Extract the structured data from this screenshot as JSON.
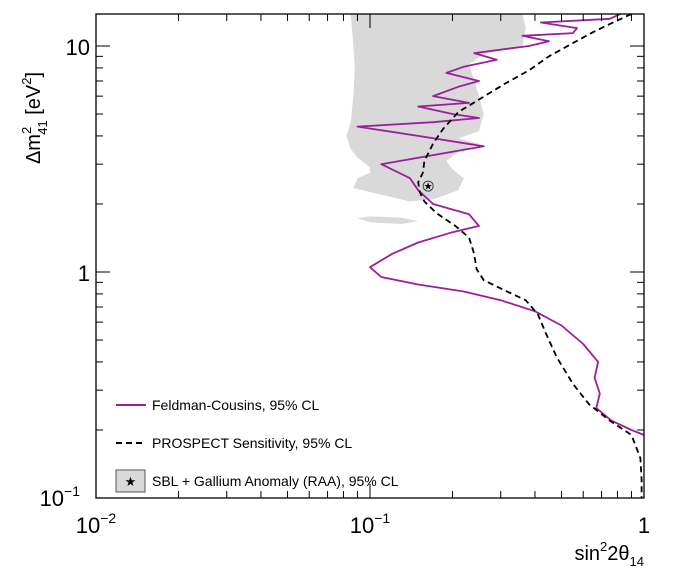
{
  "chart_data": {
    "type": "line",
    "xscale": "log",
    "yscale": "log",
    "xlim": [
      0.01,
      1
    ],
    "ylim": [
      0.1,
      14
    ],
    "xlabel": {
      "base": "sin",
      "sup": "2",
      "mid": "2θ",
      "sub": "14"
    },
    "ylabel": {
      "pre": "Δm",
      "sup": "2",
      "sub": "41",
      "post": " [eV",
      "unit_sup": "2",
      "close": "]"
    },
    "x_ticks": [
      {
        "value": 0.01,
        "base": "10",
        "exp": "−2"
      },
      {
        "value": 0.1,
        "base": "10",
        "exp": "−1"
      },
      {
        "value": 1,
        "base": "1",
        "exp": ""
      }
    ],
    "y_ticks": [
      {
        "value": 0.1,
        "base": "10",
        "exp": "−1"
      },
      {
        "value": 1,
        "base": "1",
        "exp": ""
      },
      {
        "value": 10,
        "base": "10",
        "exp": ""
      }
    ],
    "grid": false,
    "legend_position": "bottom-left",
    "legend": {
      "feldman": "Feldman-Cousins, 95% CL",
      "sensitivity": "PROSPECT Sensitivity, 95% CL",
      "anomaly": "SBL + Gallium Anomaly (RAA), 95% CL"
    },
    "series": [
      {
        "id": "feldman",
        "color": "#9b1f9b",
        "style": "solid",
        "points": [
          [
            0.82,
            14.0
          ],
          [
            0.75,
            13.2
          ],
          [
            0.42,
            12.7
          ],
          [
            0.57,
            12.0
          ],
          [
            0.55,
            11.4
          ],
          [
            0.36,
            11.1
          ],
          [
            0.45,
            10.5
          ],
          [
            0.38,
            10.0
          ],
          [
            0.24,
            9.3
          ],
          [
            0.29,
            8.7
          ],
          [
            0.22,
            8.1
          ],
          [
            0.19,
            7.6
          ],
          [
            0.25,
            7.0
          ],
          [
            0.21,
            6.6
          ],
          [
            0.17,
            6.0
          ],
          [
            0.23,
            5.6
          ],
          [
            0.15,
            5.4
          ],
          [
            0.2,
            5.0
          ],
          [
            0.25,
            4.8
          ],
          [
            0.17,
            4.6
          ],
          [
            0.09,
            4.4
          ],
          [
            0.15,
            4.0
          ],
          [
            0.26,
            3.6
          ],
          [
            0.15,
            3.2
          ],
          [
            0.11,
            3.0
          ],
          [
            0.14,
            2.6
          ],
          [
            0.15,
            2.3
          ],
          [
            0.17,
            2.0
          ],
          [
            0.23,
            1.8
          ],
          [
            0.25,
            1.6
          ],
          [
            0.2,
            1.5
          ],
          [
            0.15,
            1.35
          ],
          [
            0.12,
            1.2
          ],
          [
            0.1,
            1.05
          ],
          [
            0.11,
            0.95
          ],
          [
            0.15,
            0.88
          ],
          [
            0.22,
            0.82
          ],
          [
            0.3,
            0.75
          ],
          [
            0.4,
            0.67
          ],
          [
            0.5,
            0.58
          ],
          [
            0.6,
            0.48
          ],
          [
            0.68,
            0.4
          ],
          [
            0.66,
            0.34
          ],
          [
            0.69,
            0.29
          ],
          [
            0.67,
            0.25
          ],
          [
            0.76,
            0.22
          ],
          [
            0.9,
            0.2
          ],
          [
            1.0,
            0.19
          ]
        ]
      },
      {
        "id": "sensitivity",
        "color": "#000000",
        "style": "dashed",
        "points": [
          [
            0.9,
            14.0
          ],
          [
            0.78,
            12.8
          ],
          [
            0.65,
            11.5
          ],
          [
            0.55,
            10.3
          ],
          [
            0.45,
            9.0
          ],
          [
            0.38,
            7.8
          ],
          [
            0.31,
            6.8
          ],
          [
            0.25,
            5.8
          ],
          [
            0.21,
            5.1
          ],
          [
            0.185,
            4.3
          ],
          [
            0.17,
            3.7
          ],
          [
            0.158,
            3.1
          ],
          [
            0.156,
            2.75
          ],
          [
            0.15,
            2.5
          ],
          [
            0.152,
            2.25
          ],
          [
            0.158,
            2.05
          ],
          [
            0.175,
            1.82
          ],
          [
            0.205,
            1.6
          ],
          [
            0.23,
            1.42
          ],
          [
            0.24,
            1.2
          ],
          [
            0.245,
            1.03
          ],
          [
            0.26,
            0.92
          ],
          [
            0.31,
            0.83
          ],
          [
            0.37,
            0.75
          ],
          [
            0.41,
            0.65
          ],
          [
            0.44,
            0.53
          ],
          [
            0.48,
            0.42
          ],
          [
            0.55,
            0.32
          ],
          [
            0.63,
            0.26
          ],
          [
            0.75,
            0.22
          ],
          [
            0.9,
            0.19
          ],
          [
            0.97,
            0.15
          ],
          [
            0.98,
            0.12
          ],
          [
            0.98,
            0.1
          ]
        ]
      }
    ],
    "regions": [
      {
        "id": "anomaly-main",
        "color": "#d9d9d9",
        "points": [
          [
            0.085,
            14.0
          ],
          [
            0.36,
            14.0
          ],
          [
            0.37,
            12.0
          ],
          [
            0.36,
            10.0
          ],
          [
            0.26,
            9.2
          ],
          [
            0.23,
            8.3
          ],
          [
            0.24,
            7.0
          ],
          [
            0.25,
            6.0
          ],
          [
            0.26,
            5.0
          ],
          [
            0.25,
            4.2
          ],
          [
            0.21,
            3.9
          ],
          [
            0.25,
            3.7
          ],
          [
            0.21,
            3.4
          ],
          [
            0.19,
            3.1
          ],
          [
            0.2,
            2.85
          ],
          [
            0.22,
            2.6
          ],
          [
            0.21,
            2.3
          ],
          [
            0.17,
            2.1
          ],
          [
            0.14,
            2.05
          ],
          [
            0.11,
            2.2
          ],
          [
            0.087,
            2.35
          ],
          [
            0.09,
            2.6
          ],
          [
            0.1,
            2.75
          ],
          [
            0.1,
            2.9
          ],
          [
            0.09,
            3.2
          ],
          [
            0.085,
            3.5
          ],
          [
            0.082,
            4.0
          ],
          [
            0.085,
            4.6
          ],
          [
            0.087,
            6.0
          ],
          [
            0.088,
            8.0
          ],
          [
            0.087,
            10.0
          ]
        ]
      },
      {
        "id": "anomaly-island",
        "color": "#d9d9d9",
        "points": [
          [
            0.09,
            1.73
          ],
          [
            0.1,
            1.66
          ],
          [
            0.13,
            1.63
          ],
          [
            0.15,
            1.68
          ],
          [
            0.13,
            1.74
          ],
          [
            0.1,
            1.76
          ]
        ]
      }
    ],
    "markers": [
      {
        "id": "best-fit",
        "x": 0.163,
        "y": 2.4,
        "symbol": "circled-star"
      }
    ]
  }
}
